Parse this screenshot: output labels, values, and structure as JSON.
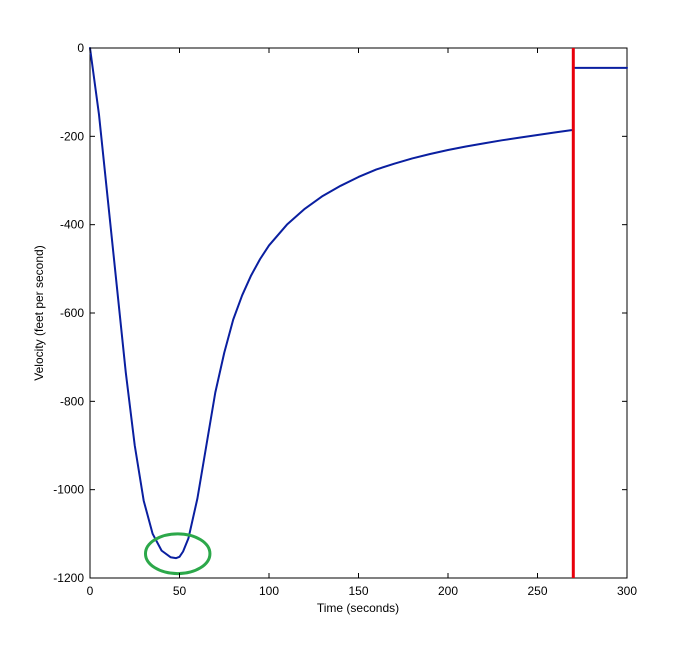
{
  "chart_data": {
    "type": "line",
    "title": "",
    "xlabel": "Time (seconds)",
    "ylabel": "Velocity (feet per second)",
    "xlim": [
      0,
      300
    ],
    "ylim": [
      -1200,
      0
    ],
    "xticks": [
      0,
      50,
      100,
      150,
      200,
      250,
      300
    ],
    "yticks": [
      0,
      -200,
      -400,
      -600,
      -800,
      -1000,
      -1200
    ],
    "grid": false,
    "legend": "none",
    "series": [
      {
        "color": "#0a1fa0",
        "x": [
          0,
          5,
          10,
          15,
          20,
          25,
          30,
          35,
          40,
          45,
          48,
          50,
          52,
          55,
          60,
          65,
          70,
          75,
          80,
          85,
          90,
          95,
          100,
          110,
          120,
          130,
          140,
          150,
          160,
          170,
          180,
          190,
          200,
          210,
          220,
          230,
          240,
          250,
          260,
          269
        ],
        "y": [
          0,
          -150,
          -345,
          -540,
          -735,
          -900,
          -1025,
          -1100,
          -1138,
          -1153,
          -1155,
          -1152,
          -1140,
          -1110,
          -1020,
          -900,
          -780,
          -690,
          -615,
          -560,
          -515,
          -478,
          -447,
          -400,
          -364,
          -335,
          -312,
          -292,
          -275,
          -262,
          -250,
          -240,
          -231,
          -223,
          -216,
          -209,
          -203,
          -197,
          -191,
          -186
        ]
      },
      {
        "color": "#0a1fa0",
        "x": [
          271,
          300
        ],
        "y": [
          -45,
          -45
        ]
      }
    ],
    "annotations": [
      {
        "type": "vertical-line",
        "x": 270,
        "color": "#e8000b"
      },
      {
        "type": "ellipse",
        "cx": 49,
        "cy": -1145,
        "rx": 18,
        "ry": 45,
        "color": "#2ca84a"
      }
    ]
  }
}
